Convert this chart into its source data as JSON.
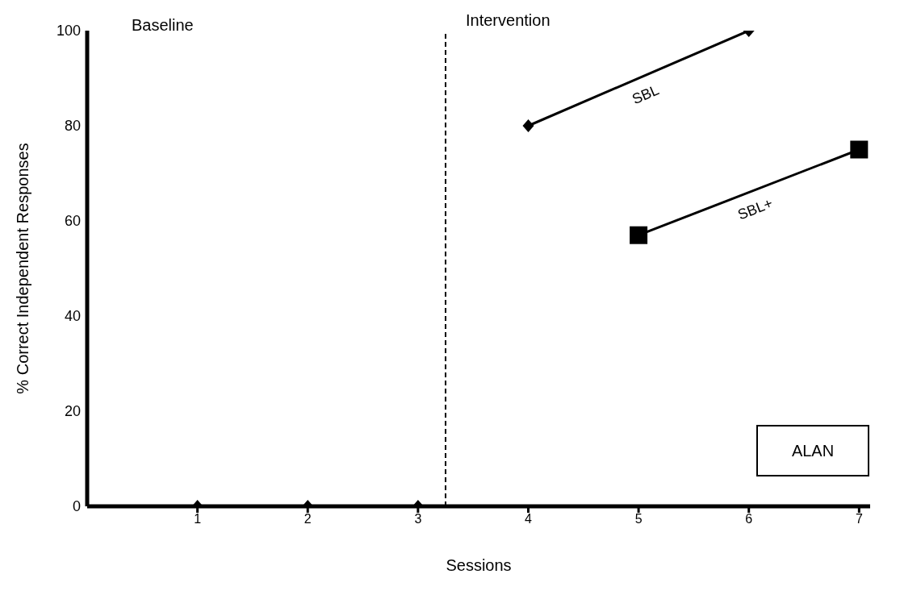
{
  "chart_data": {
    "type": "line",
    "xlabel": "Sessions",
    "ylabel": "% Correct Independent Responses",
    "xlim": [
      0,
      7.1
    ],
    "xticks": [
      1,
      2,
      3,
      4,
      5,
      6,
      7
    ],
    "ylim": [
      0,
      100
    ],
    "yticks": [
      0,
      20,
      40,
      60,
      80,
      100
    ],
    "grid": false,
    "series": [
      {
        "type": "scatter",
        "color": "#000000",
        "marker": "diamond",
        "x": [
          1,
          2,
          3
        ],
        "values": [
          0,
          0,
          0
        ]
      },
      {
        "name": "SBL",
        "color": "#000000",
        "marker": "diamond",
        "x": [
          4,
          6
        ],
        "values": [
          80,
          100
        ]
      },
      {
        "name": "SBL+",
        "color": "#000000",
        "marker": "square",
        "x": [
          5,
          7
        ],
        "values": [
          57,
          75
        ]
      }
    ],
    "ref_lines": [
      {
        "axis": "x",
        "value": 3.25,
        "color": "#000000",
        "line_style": "dashed"
      }
    ],
    "annotations": [
      "Baseline",
      "Intervention",
      "ALAN"
    ]
  }
}
